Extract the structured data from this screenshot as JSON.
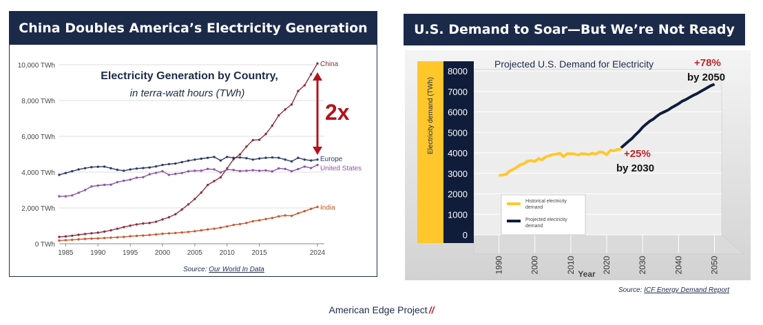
{
  "left": {
    "title": "China Doubles America’s Electricity Generation",
    "source_prefix": "Source: ",
    "source_link": "Our World In Data"
  },
  "right": {
    "title": "U.S. Demand to Soar—But We’re Not Ready",
    "source_prefix": "Source: ",
    "source_link": "ICF Energy Demand Report"
  },
  "footer": {
    "text": "American Edge Project",
    "mark": "//"
  },
  "colors": {
    "navy": "#1c2a4a",
    "china": "#8b2e3c",
    "europe": "#2b3a67",
    "us": "#8a55a6",
    "india": "#c9572f",
    "accent_red": "#b3121b",
    "yellow": "#ffc72c"
  },
  "chart_data": [
    {
      "type": "line",
      "title": "Electricity Generation by Country,",
      "subtitle": "in terra-watt hours (TWh)",
      "xlabel": "",
      "ylabel": "",
      "xlim": [
        1984,
        2024
      ],
      "ylim": [
        0,
        10000
      ],
      "yticks": [
        0,
        2000,
        4000,
        6000,
        8000,
        10000
      ],
      "ytick_labels": [
        "0 TWh",
        "2,000 TWh",
        "4,000 TWh",
        "6,000 TWh",
        "8,000 TWh",
        "10,000 TWh"
      ],
      "xticks": [
        1985,
        1990,
        1995,
        2000,
        2005,
        2010,
        2015,
        2024
      ],
      "xtick_labels": [
        "1985",
        "1990",
        "1995",
        "2000",
        "2005",
        "2010",
        "2015",
        "2024"
      ],
      "annotation": "2x",
      "x": [
        1984,
        1985,
        1986,
        1987,
        1988,
        1989,
        1990,
        1991,
        1992,
        1993,
        1994,
        1995,
        1996,
        1997,
        1998,
        1999,
        2000,
        2001,
        2002,
        2003,
        2004,
        2005,
        2006,
        2007,
        2008,
        2009,
        2010,
        2011,
        2012,
        2013,
        2014,
        2015,
        2016,
        2017,
        2018,
        2019,
        2020,
        2021,
        2022,
        2023,
        2024
      ],
      "series": [
        {
          "name": "China",
          "color": "#8b2e3c",
          "values": [
            380,
            410,
            450,
            500,
            545,
            585,
            620,
            680,
            750,
            840,
            930,
            1010,
            1080,
            1130,
            1160,
            1230,
            1360,
            1480,
            1650,
            1910,
            2200,
            2500,
            2860,
            3280,
            3500,
            3710,
            4210,
            4720,
            4990,
            5430,
            5790,
            5810,
            6130,
            6600,
            7170,
            7500,
            7780,
            8530,
            8850,
            9460,
            10070
          ]
        },
        {
          "name": "Europe",
          "color": "#2b3a67",
          "values": [
            3850,
            3950,
            4050,
            4150,
            4220,
            4280,
            4300,
            4310,
            4220,
            4130,
            4080,
            4150,
            4200,
            4230,
            4260,
            4320,
            4400,
            4450,
            4480,
            4560,
            4640,
            4700,
            4750,
            4800,
            4850,
            4650,
            4850,
            4800,
            4820,
            4780,
            4700,
            4760,
            4800,
            4820,
            4800,
            4700,
            4600,
            4800,
            4700,
            4650,
            4700
          ]
        },
        {
          "name": "United States",
          "color": "#8a55a6",
          "values": [
            2650,
            2650,
            2700,
            2850,
            3000,
            3200,
            3250,
            3290,
            3300,
            3440,
            3520,
            3580,
            3690,
            3720,
            3880,
            3960,
            4050,
            3850,
            3900,
            3950,
            4050,
            4080,
            4080,
            4180,
            4150,
            3980,
            4150,
            4120,
            4060,
            4080,
            4110,
            4080,
            4100,
            4040,
            4210,
            4180,
            4050,
            4170,
            4310,
            4230,
            4400
          ]
        },
        {
          "name": "India",
          "color": "#c9572f",
          "values": [
            180,
            200,
            220,
            245,
            270,
            290,
            300,
            320,
            340,
            360,
            380,
            420,
            440,
            460,
            490,
            520,
            560,
            580,
            600,
            630,
            660,
            700,
            750,
            800,
            840,
            900,
            970,
            1050,
            1100,
            1160,
            1260,
            1310,
            1380,
            1440,
            1530,
            1580,
            1560,
            1700,
            1820,
            1950,
            2060
          ]
        }
      ]
    },
    {
      "type": "line",
      "title": "Projected U.S. Demand for Electricity",
      "xlabel": "Year",
      "ylabel": "Electricity demand (TWh)",
      "xlim": [
        1983,
        2052
      ],
      "ylim": [
        0,
        8000
      ],
      "yticks": [
        0,
        1000,
        2000,
        3000,
        4000,
        5000,
        6000,
        7000,
        8000
      ],
      "ytick_labels": [
        "0",
        "1000",
        "2000",
        "3000",
        "4000",
        "5000",
        "6000",
        "7000",
        "8000"
      ],
      "xticks": [
        1990,
        2000,
        2010,
        2020,
        2030,
        2040,
        2050
      ],
      "xtick_labels": [
        "1990",
        "2000",
        "2010",
        "2020",
        "2030",
        "2040",
        "2050"
      ],
      "legend": [
        "Historical electricity demand",
        "Projected electricity demand"
      ],
      "legend_placement": "bottom-left",
      "annotations": [
        {
          "pct": "+25%",
          "label": "by 2030"
        },
        {
          "pct": "+78%",
          "label": "by 2050"
        }
      ],
      "series": [
        {
          "name": "Historical electricity demand",
          "color": "#ffc72c",
          "x": [
            1990,
            1991,
            1992,
            1993,
            1994,
            1995,
            1996,
            1997,
            1998,
            1999,
            2000,
            2001,
            2002,
            2003,
            2004,
            2005,
            2006,
            2007,
            2008,
            2009,
            2010,
            2011,
            2012,
            2013,
            2014,
            2015,
            2016,
            2017,
            2018,
            2019,
            2020,
            2021,
            2022,
            2023,
            2024
          ],
          "values": [
            2900,
            2920,
            2950,
            3120,
            3200,
            3300,
            3420,
            3480,
            3600,
            3620,
            3580,
            3720,
            3660,
            3800,
            3860,
            3920,
            3940,
            3980,
            3820,
            3960,
            3950,
            3950,
            3900,
            3960,
            3950,
            3920,
            3980,
            3940,
            4050,
            4020,
            3910,
            4120,
            4100,
            4160,
            4180
          ]
        },
        {
          "name": "Projected electricity demand",
          "color": "#0f1c3a",
          "x": [
            2024,
            2025,
            2026,
            2027,
            2028,
            2029,
            2030,
            2031,
            2032,
            2033,
            2034,
            2035,
            2036,
            2037,
            2038,
            2039,
            2040,
            2041,
            2042,
            2043,
            2044,
            2045,
            2046,
            2047,
            2048,
            2049,
            2050
          ],
          "values": [
            4250,
            4400,
            4550,
            4700,
            4880,
            5050,
            5250,
            5400,
            5550,
            5650,
            5800,
            5920,
            6000,
            6080,
            6200,
            6300,
            6400,
            6520,
            6600,
            6700,
            6800,
            6880,
            6980,
            7080,
            7180,
            7280,
            7350
          ]
        }
      ]
    }
  ]
}
